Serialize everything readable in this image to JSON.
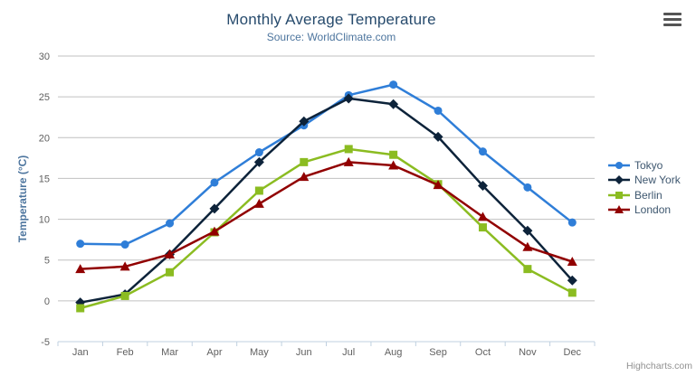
{
  "chart": {
    "title": "Monthly Average Temperature",
    "subtitle": "Source: WorldClimate.com",
    "credits": "Highcharts.com",
    "menu_icon": "hamburger-menu-icon"
  },
  "chart_data": {
    "type": "line",
    "title": "Monthly Average Temperature",
    "subtitle": "Source: WorldClimate.com",
    "xlabel": "",
    "ylabel": "Temperature (°C)",
    "categories": [
      "Jan",
      "Feb",
      "Mar",
      "Apr",
      "May",
      "Jun",
      "Jul",
      "Aug",
      "Sep",
      "Oct",
      "Nov",
      "Dec"
    ],
    "series": [
      {
        "name": "Tokyo",
        "color": "#2f7ed8",
        "marker": "circle",
        "values": [
          7.0,
          6.9,
          9.5,
          14.5,
          18.2,
          21.5,
          25.2,
          26.5,
          23.3,
          18.3,
          13.9,
          9.6
        ]
      },
      {
        "name": "New York",
        "color": "#0d233a",
        "marker": "diamond",
        "values": [
          -0.2,
          0.8,
          5.7,
          11.3,
          17.0,
          22.0,
          24.8,
          24.1,
          20.1,
          14.1,
          8.6,
          2.5
        ]
      },
      {
        "name": "Berlin",
        "color": "#8bbc21",
        "marker": "square",
        "values": [
          -0.9,
          0.6,
          3.5,
          8.4,
          13.5,
          17.0,
          18.6,
          17.9,
          14.3,
          9.0,
          3.9,
          1.0
        ]
      },
      {
        "name": "London",
        "color": "#910000",
        "marker": "triangle",
        "values": [
          3.9,
          4.2,
          5.7,
          8.5,
          11.9,
          15.2,
          17.0,
          16.6,
          14.2,
          10.3,
          6.6,
          4.8
        ]
      }
    ],
    "ylim": [
      -5,
      30
    ],
    "y_ticks": [
      -5,
      0,
      5,
      10,
      15,
      20,
      25,
      30
    ],
    "grid": true,
    "legend_position": "right",
    "style": {
      "background": "#ffffff",
      "grid_color": "#c0c0c0",
      "axis_line_color": "#c0d0e0",
      "axis_label_color": "#606060",
      "axis_title_color": "#4d759e",
      "title_color": "#274b6d",
      "subtitle_color": "#4d759e",
      "legend_text_color": "#3E576F",
      "credits_color": "#909090"
    }
  }
}
